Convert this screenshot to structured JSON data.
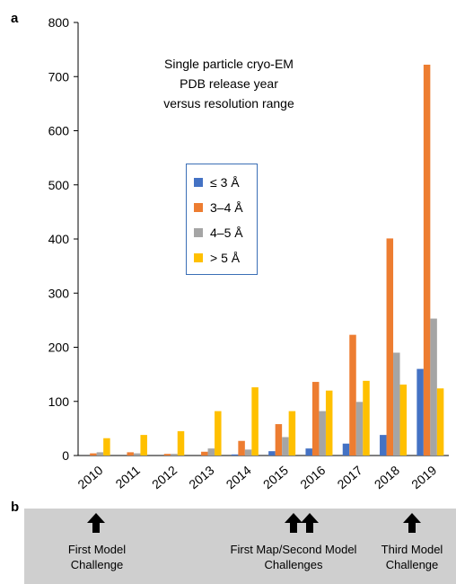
{
  "panel_a_label": "a",
  "panel_b_label": "b",
  "chart_data": {
    "type": "bar",
    "title": "Single particle cryo-EM\nPDB release year\nversus resolution range",
    "categories": [
      "2010",
      "2011",
      "2012",
      "2013",
      "2014",
      "2015",
      "2016",
      "2017",
      "2018",
      "2019"
    ],
    "ylim": [
      0,
      800
    ],
    "yticks": [
      0,
      100,
      200,
      300,
      400,
      500,
      600,
      700,
      800
    ],
    "legend_position": "center-left",
    "grid": false,
    "series": [
      {
        "name": "≤ 3 Å",
        "color": "#4472c4",
        "values": [
          0,
          0,
          0,
          0,
          2,
          8,
          13,
          22,
          38,
          160
        ]
      },
      {
        "name": "3–4 Å",
        "color": "#ed7d31",
        "values": [
          4,
          6,
          3,
          7,
          27,
          58,
          136,
          223,
          401,
          722
        ]
      },
      {
        "name": "4–5 Å",
        "color": "#a5a5a5",
        "values": [
          6,
          4,
          3,
          13,
          11,
          34,
          82,
          99,
          190,
          253
        ]
      },
      {
        "name": "> 5 Å",
        "color": "#ffc000",
        "values": [
          32,
          38,
          45,
          82,
          126,
          82,
          120,
          138,
          131,
          124
        ]
      }
    ]
  },
  "timeline": {
    "items": [
      {
        "label": "First Model\nChallenge",
        "arrows": 1
      },
      {
        "label": "First Map/Second Model\nChallenges",
        "arrows": 2
      },
      {
        "label": "Third Model\nChallenge",
        "arrows": 1
      }
    ]
  }
}
